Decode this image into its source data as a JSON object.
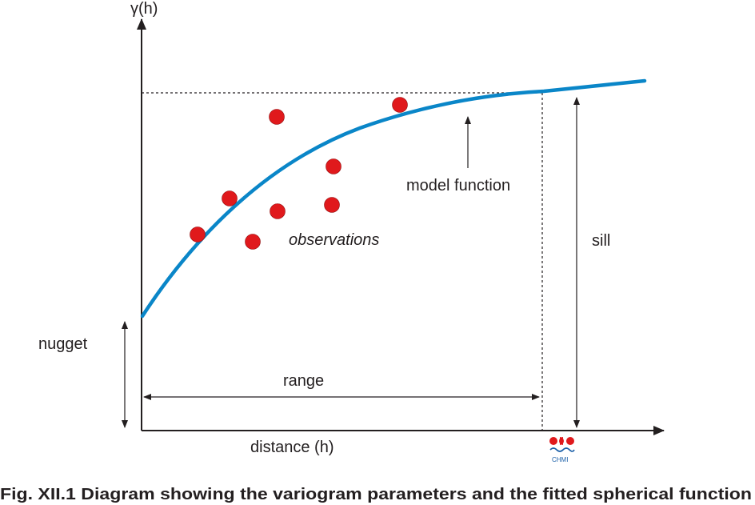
{
  "labels": {
    "y_axis": "γ(h)",
    "x_axis": "distance (h)",
    "nugget": "nugget",
    "range": "range",
    "sill": "sill",
    "model_function": "model function",
    "observations": "observations"
  },
  "logo": {
    "text": "CHMI"
  },
  "caption": "Fig. XII.1  Diagram showing the variogram parameters and the fitted spherical function",
  "colors": {
    "curve": "#0a86c8",
    "observation": "#e0191c",
    "ink": "#231f20"
  },
  "observations_count": 8
}
